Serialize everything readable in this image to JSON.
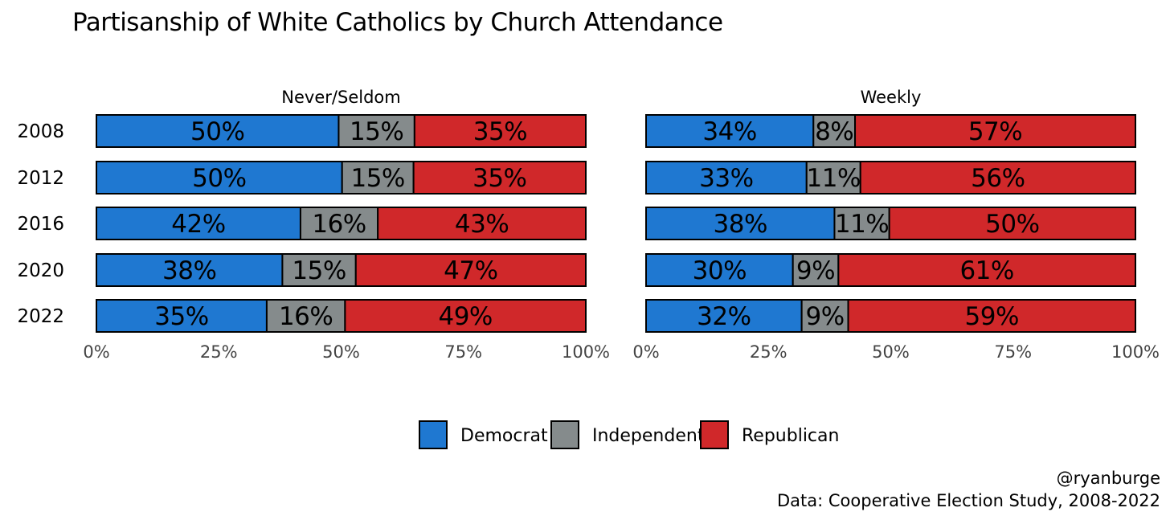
{
  "chart_data": {
    "type": "bar",
    "orientation": "horizontal",
    "stacked": true,
    "title": "Partisanship of White Catholics by Church Attendance",
    "categories": [
      "2008",
      "2012",
      "2016",
      "2020",
      "2022"
    ],
    "xlim": [
      0,
      1
    ],
    "x_ticks": [
      "0%",
      "25%",
      "50%",
      "75%",
      "100%"
    ],
    "legend": {
      "position": "bottom",
      "entries": [
        {
          "name": "Democrat",
          "color": "#1f78d1"
        },
        {
          "name": "Independent",
          "color": "#858b8c"
        },
        {
          "name": "Republican",
          "color": "#d0282a"
        }
      ]
    },
    "panels": [
      {
        "facet": "Never/Seldom",
        "series": [
          {
            "name": "Democrat",
            "values": [
              0.495,
              0.502,
              0.417,
              0.38,
              0.348
            ],
            "labels": [
              "50%",
              "50%",
              "42%",
              "38%",
              "35%"
            ]
          },
          {
            "name": "Independent",
            "values": [
              0.155,
              0.146,
              0.158,
              0.15,
              0.16
            ],
            "labels": [
              "15%",
              "15%",
              "16%",
              "15%",
              "16%"
            ]
          },
          {
            "name": "Republican",
            "values": [
              0.35,
              0.352,
              0.425,
              0.47,
              0.492
            ],
            "labels": [
              "35%",
              "35%",
              "43%",
              "47%",
              "49%"
            ]
          }
        ]
      },
      {
        "facet": "Weekly",
        "series": [
          {
            "name": "Democrat",
            "values": [
              0.342,
              0.328,
              0.385,
              0.3,
              0.318
            ],
            "labels": [
              "34%",
              "33%",
              "38%",
              "30%",
              "32%"
            ]
          },
          {
            "name": "Independent",
            "values": [
              0.085,
              0.11,
              0.112,
              0.093,
              0.095
            ],
            "labels": [
              "8%",
              "11%",
              "11%",
              "9%",
              "9%"
            ]
          },
          {
            "name": "Republican",
            "values": [
              0.573,
              0.562,
              0.503,
              0.607,
              0.587
            ],
            "labels": [
              "57%",
              "56%",
              "50%",
              "61%",
              "59%"
            ]
          }
        ]
      }
    ],
    "caption": [
      "@ryanburge",
      "Data: Cooperative Election Study, 2008-2022"
    ]
  }
}
